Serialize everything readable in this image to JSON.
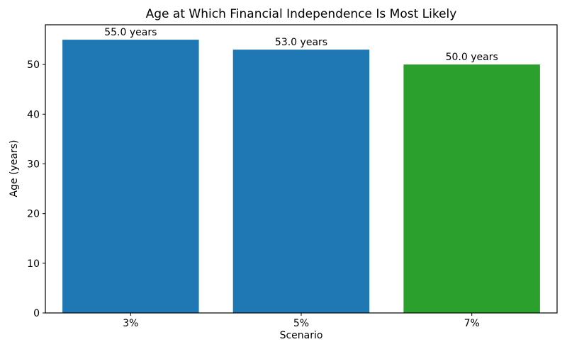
{
  "figure": {
    "background": "#ffffff"
  },
  "chart_data": {
    "type": "bar",
    "title": "Age at Which Financial Independence Is Most Likely",
    "xlabel": "Scenario",
    "ylabel": "Age (years)",
    "categories": [
      "3%",
      "5%",
      "7%"
    ],
    "values": [
      55.0,
      53.0,
      50.0
    ],
    "bar_labels": [
      "55.0 years",
      "53.0 years",
      "50.0 years"
    ],
    "bar_colors": [
      "#1f77b4",
      "#1f77b4",
      "#2ca02c"
    ],
    "yticks": [
      0,
      10,
      20,
      30,
      40,
      50
    ],
    "ylim": [
      0,
      58
    ],
    "grid": false,
    "legend": null,
    "axis_color": "#000000",
    "text_color": "#000000"
  }
}
